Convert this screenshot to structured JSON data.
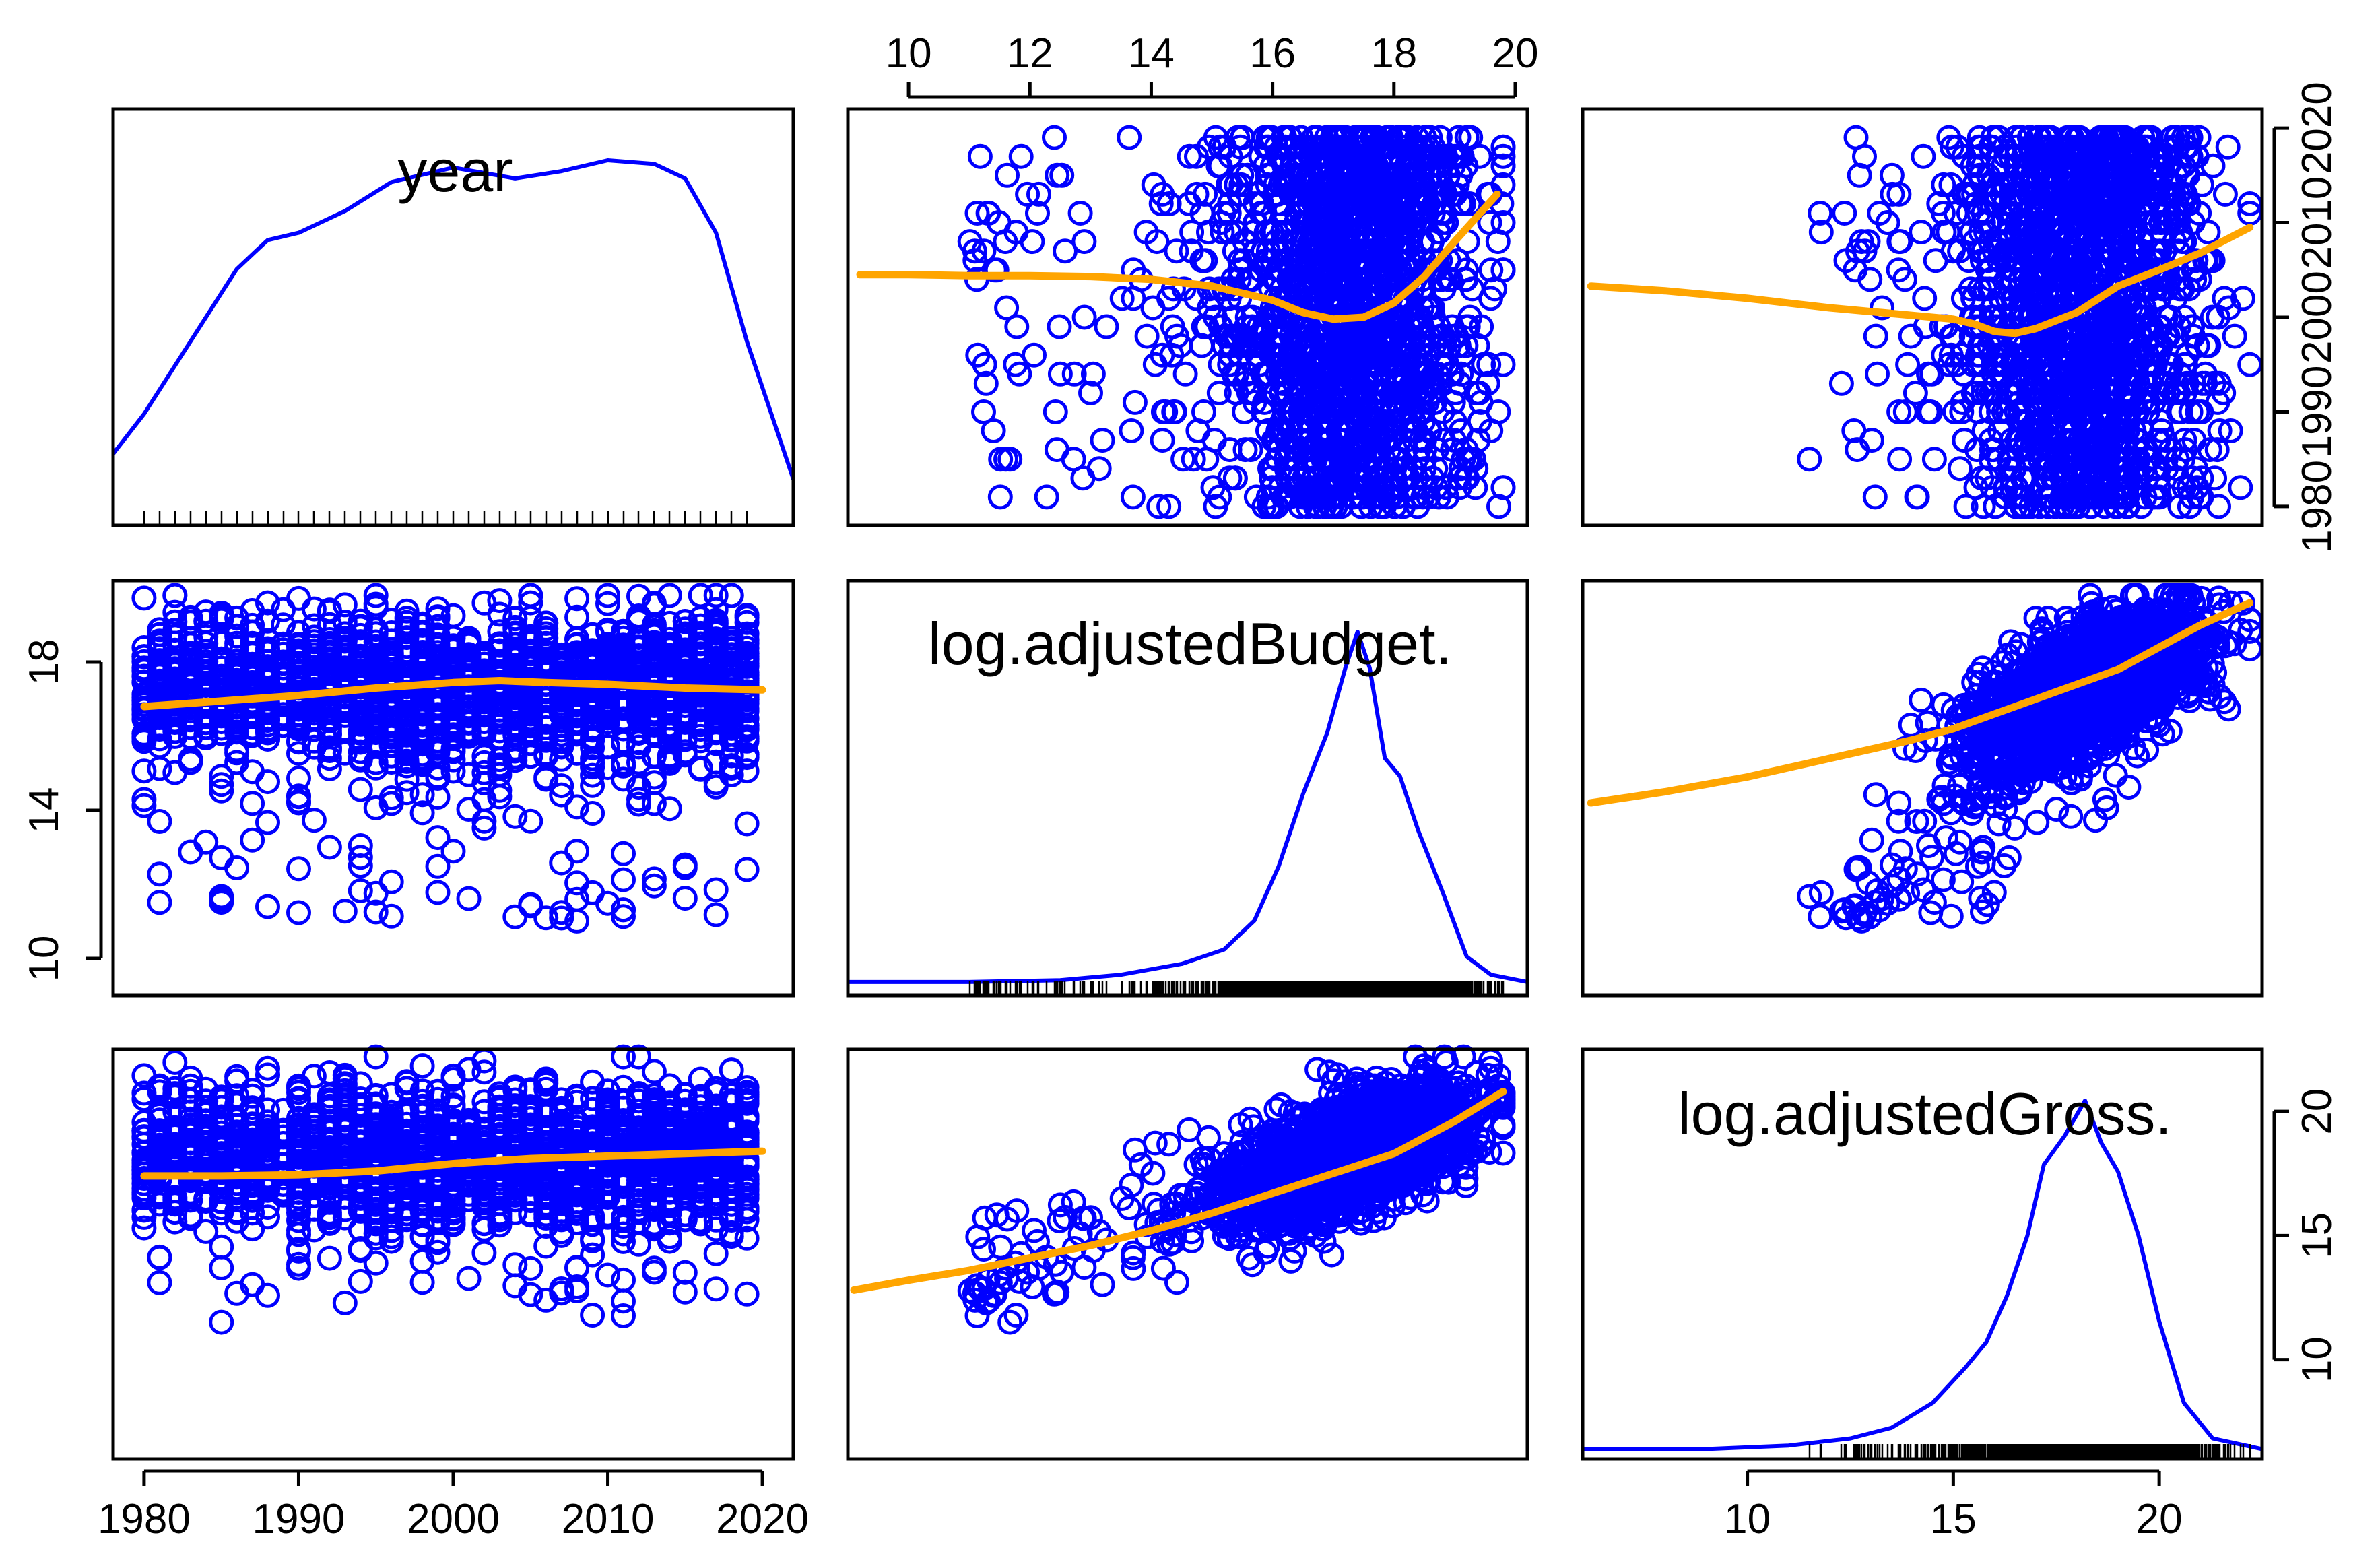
{
  "chart_data": {
    "type": "scatter-matrix",
    "variables": [
      "year",
      "log.adjustedBudget.",
      "log.adjustedGross."
    ],
    "diagonal": "density with rug",
    "colors": {
      "points": "#0000ff",
      "smoother": "#ffa500",
      "density": "#0000ff",
      "frame": "#000000"
    },
    "axes": {
      "year": {
        "range": [
          1978,
          2022
        ],
        "ticks": [
          1980,
          1990,
          2000,
          2010,
          2020
        ]
      },
      "log.adjustedBudget.": {
        "range": [
          9,
          20.2
        ],
        "ticks_top": [
          10,
          12,
          14,
          16,
          18,
          20
        ],
        "ticks_left": [
          10,
          14,
          18
        ]
      },
      "log.adjustedGross.": {
        "range": [
          6,
          22.5
        ],
        "ticks": [
          10,
          15,
          20
        ]
      }
    },
    "density": {
      "year": {
        "x": [
          1978,
          1980,
          1983,
          1986,
          1988,
          1990,
          1993,
          1996,
          2000,
          2004,
          2007,
          2010,
          2013,
          2015,
          2017,
          2019,
          2022
        ],
        "y": [
          0.19,
          0.3,
          0.5,
          0.7,
          0.78,
          0.8,
          0.86,
          0.94,
          0.98,
          0.95,
          0.97,
          1.0,
          0.99,
          0.95,
          0.8,
          0.5,
          0.12
        ]
      },
      "log.adjustedBudget.": {
        "x": [
          9,
          11,
          12.5,
          13.5,
          14.5,
          15.2,
          15.7,
          16.1,
          16.5,
          16.9,
          17.2,
          17.4,
          17.6,
          17.85,
          18.1,
          18.4,
          18.8,
          19.2,
          19.6,
          20.2
        ],
        "y": [
          0.03,
          0.03,
          0.035,
          0.05,
          0.08,
          0.12,
          0.2,
          0.35,
          0.55,
          0.72,
          0.9,
          1.0,
          0.9,
          0.65,
          0.6,
          0.45,
          0.28,
          0.1,
          0.05,
          0.03
        ]
      },
      "log.adjustedGross.": {
        "x": [
          6,
          9,
          11,
          12.5,
          13.5,
          14.5,
          15.3,
          15.8,
          16.3,
          16.8,
          17.2,
          17.7,
          18.2,
          18.6,
          19.0,
          19.5,
          20.0,
          20.6,
          21.3,
          22.5
        ],
        "y": [
          0.02,
          0.02,
          0.03,
          0.05,
          0.08,
          0.15,
          0.25,
          0.32,
          0.45,
          0.62,
          0.82,
          0.9,
          1.0,
          0.88,
          0.8,
          0.62,
          0.38,
          0.15,
          0.05,
          0.02
        ]
      }
    },
    "smoothers": {
      "year|log.adjustedBudget.": {
        "x": [
          1980,
          1985,
          1990,
          1995,
          2000,
          2003,
          2006,
          2010,
          2015,
          2020
        ],
        "y": [
          16.8,
          16.95,
          17.1,
          17.3,
          17.45,
          17.5,
          17.45,
          17.4,
          17.3,
          17.25
        ]
      },
      "year|log.adjustedGross.": {
        "x": [
          1980,
          1985,
          1990,
          1995,
          2000,
          2005,
          2010,
          2015,
          2020
        ],
        "y": [
          17.4,
          17.4,
          17.45,
          17.6,
          17.9,
          18.1,
          18.2,
          18.3,
          18.4
        ]
      },
      "log.adjustedBudget.|year": {
        "x": [
          9.2,
          10,
          11,
          12,
          13,
          14,
          15,
          16,
          16.5,
          17,
          17.5,
          18,
          18.5,
          19,
          19.7
        ],
        "y": [
          2004.5,
          2004.5,
          2004.4,
          2004.4,
          2004.3,
          2004.0,
          2003.3,
          2001.8,
          2000.5,
          1999.8,
          2000.0,
          2001.5,
          2004.3,
          2008.0,
          2013.0
        ]
      },
      "log.adjustedBudget.|log.adjustedGross.": {
        "x": [
          9.1,
          10,
          11,
          12,
          13,
          14,
          15,
          16,
          17,
          18,
          19,
          19.8
        ],
        "y": [
          12.8,
          13.2,
          13.6,
          14.1,
          14.6,
          15.2,
          15.9,
          16.7,
          17.5,
          18.3,
          19.6,
          20.8
        ]
      },
      "log.adjustedGross.|year": {
        "x": [
          6.2,
          8,
          10,
          12,
          14,
          15,
          15.5,
          16,
          16.5,
          17,
          18,
          19,
          20,
          21,
          22.2
        ],
        "y": [
          2003.3,
          2002.8,
          2002.0,
          2001.0,
          2000.2,
          1999.8,
          1999.3,
          1998.5,
          1998.3,
          1998.8,
          2000.5,
          2003.3,
          2005.0,
          2006.8,
          2009.5
        ]
      },
      "log.adjustedGross.|log.adjustedBudget.": {
        "x": [
          6.2,
          8,
          10,
          12,
          14,
          15,
          16,
          17,
          18,
          19,
          20,
          21,
          22.2
        ],
        "y": [
          14.2,
          14.5,
          14.9,
          15.4,
          15.9,
          16.2,
          16.6,
          17.0,
          17.4,
          17.8,
          18.4,
          19.0,
          19.6
        ]
      }
    }
  }
}
